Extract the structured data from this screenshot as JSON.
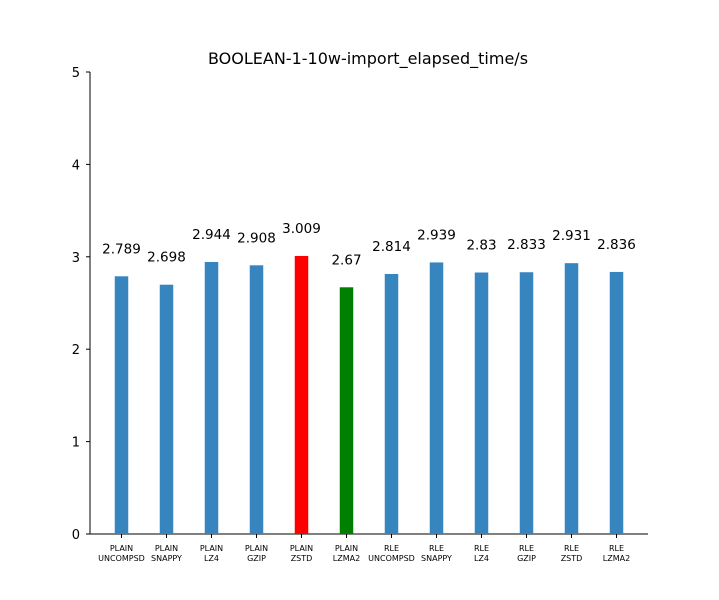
{
  "chart_data": {
    "type": "bar",
    "title": "BOOLEAN-1-10w-import_elapsed_time/s",
    "xlabel": "",
    "ylabel": "",
    "ylim": [
      0,
      5
    ],
    "yticks": [
      "0",
      "1",
      "2",
      "3",
      "4",
      "5"
    ],
    "grid": false,
    "categories": [
      [
        "PLAIN",
        "UNCOMPSD"
      ],
      [
        "PLAIN",
        "SNAPPY"
      ],
      [
        "PLAIN",
        "LZ4"
      ],
      [
        "PLAIN",
        "GZIP"
      ],
      [
        "PLAIN",
        "ZSTD"
      ],
      [
        "PLAIN",
        "LZMA2"
      ],
      [
        "RLE",
        "UNCOMPSD"
      ],
      [
        "RLE",
        "SNAPPY"
      ],
      [
        "RLE",
        "LZ4"
      ],
      [
        "RLE",
        "GZIP"
      ],
      [
        "RLE",
        "ZSTD"
      ],
      [
        "RLE",
        "LZMA2"
      ]
    ],
    "values": [
      2.789,
      2.698,
      2.944,
      2.908,
      3.009,
      2.67,
      2.814,
      2.939,
      2.83,
      2.833,
      2.931,
      2.836
    ],
    "value_labels": [
      "2.789",
      "2.698",
      "2.944",
      "2.908",
      "3.009",
      "2.67",
      "2.814",
      "2.939",
      "2.83",
      "2.833",
      "2.931",
      "2.836"
    ],
    "colors": {
      "default": "#3785bf",
      "max": "#ff0000",
      "min": "#008000"
    }
  }
}
